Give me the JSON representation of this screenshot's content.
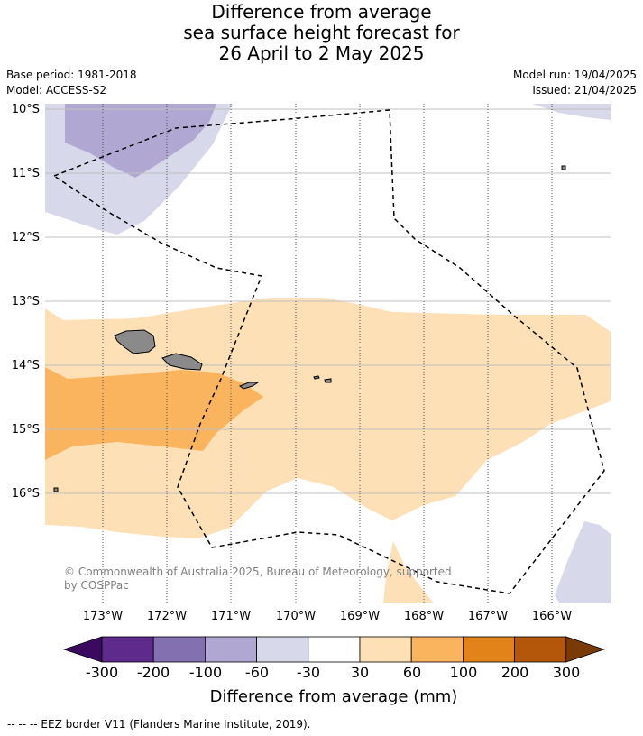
{
  "title": {
    "line1": "Difference from average",
    "line2": "sea surface height forecast for",
    "line3": "26 April to 2 May 2025"
  },
  "meta": {
    "base_period": "Base period: 1981-2018",
    "model": "Model: ACCESS-S2",
    "model_run": "Model run: 19/04/2025",
    "issued": "Issued: 21/04/2025"
  },
  "map": {
    "lat_labels": [
      "10°S",
      "11°S",
      "12°S",
      "13°S",
      "14°S",
      "15°S",
      "16°S"
    ],
    "lon_labels": [
      "173°W",
      "172°W",
      "171°W",
      "170°W",
      "169°W",
      "168°W",
      "167°W",
      "166°W"
    ],
    "copyright_line1": "© Commonwealth of Australia 2025, Bureau of Meteorology, supported",
    "copyright_line2": "by COSPPac"
  },
  "colorbar": {
    "title": "Difference from average (mm)",
    "ticks": [
      "-300",
      "-200",
      "-100",
      "-60",
      "-30",
      "30",
      "60",
      "100",
      "200",
      "300"
    ],
    "colors": [
      "#3b0a60",
      "#5e2a8c",
      "#8270b0",
      "#b0a8d3",
      "#d8d8eb",
      "#ffffff",
      "#fde0b5",
      "#fbb45e",
      "#e2831a",
      "#b4570a",
      "#7a3a08"
    ]
  },
  "footer": "--  --  -- EEZ border V11 (Flanders Marine Institute, 2019)."
}
